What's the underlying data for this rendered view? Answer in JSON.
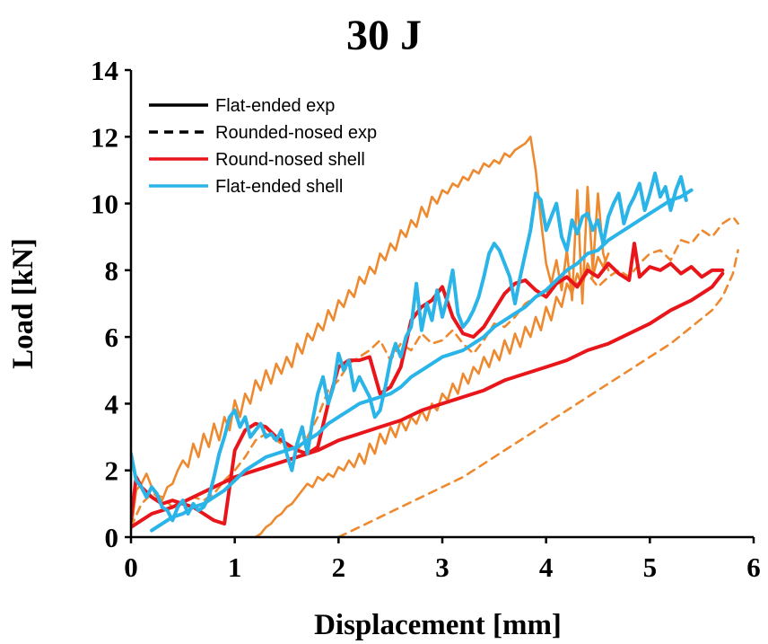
{
  "chart_data": {
    "type": "line",
    "title": "30 J",
    "xlabel": "Displacement [mm]",
    "ylabel": "Load [kN]",
    "xlim": [
      0,
      6
    ],
    "ylim": [
      0,
      14
    ],
    "x_ticks": [
      "0",
      "1",
      "2",
      "3",
      "4",
      "5",
      "6"
    ],
    "y_ticks": [
      "0",
      "2",
      "4",
      "6",
      "8",
      "10",
      "12",
      "14"
    ],
    "grid": false,
    "legend_position": "top-left",
    "legend": [
      {
        "label": "Flat-ended exp",
        "color": "#000000",
        "dash": "solid"
      },
      {
        "label": "Rounded-nosed exp",
        "color": "#000000",
        "dash": "dashed"
      },
      {
        "label": "Round-nosed shell",
        "color": "#e8161b",
        "dash": "solid"
      },
      {
        "label": "Flat-ended shell",
        "color": "#2bb4e8",
        "dash": "solid"
      }
    ],
    "series": [
      {
        "color": "#ed8a30",
        "width": 2.6,
        "dash": "solid",
        "x": [
          0.0,
          0.05,
          0.1,
          0.15,
          0.2,
          0.25,
          0.3,
          0.35,
          0.4,
          0.45,
          0.5,
          0.55,
          0.6,
          0.65,
          0.7,
          0.75,
          0.8,
          0.85,
          0.9,
          0.95,
          1.0,
          1.05,
          1.1,
          1.15,
          1.2,
          1.25,
          1.3,
          1.35,
          1.4,
          1.45,
          1.5,
          1.55,
          1.6,
          1.65,
          1.7,
          1.75,
          1.8,
          1.85,
          1.9,
          1.95,
          2.0,
          2.05,
          2.1,
          2.15,
          2.2,
          2.25,
          2.3,
          2.35,
          2.4,
          2.45,
          2.5,
          2.55,
          2.6,
          2.65,
          2.7,
          2.75,
          2.8,
          2.85,
          2.9,
          2.95,
          3.0,
          3.05,
          3.1,
          3.15,
          3.2,
          3.25,
          3.3,
          3.35,
          3.4,
          3.45,
          3.5,
          3.55,
          3.6,
          3.65,
          3.7,
          3.75,
          3.8,
          3.85,
          3.9,
          3.95,
          4.0,
          4.05,
          4.1,
          4.15,
          4.2,
          4.25,
          4.3,
          4.35,
          4.4,
          4.45,
          4.5,
          4.55,
          4.6
        ],
        "y": [
          0.2,
          1.4,
          1.6,
          1.9,
          1.5,
          1.2,
          1.1,
          1.5,
          1.6,
          2.0,
          2.3,
          2.1,
          2.8,
          2.4,
          3.1,
          2.7,
          3.4,
          2.9,
          3.6,
          3.2,
          4.1,
          3.6,
          4.3,
          4.0,
          4.7,
          4.4,
          5.0,
          4.6,
          5.2,
          4.9,
          5.4,
          5.1,
          5.8,
          5.5,
          6.1,
          5.9,
          6.4,
          6.2,
          6.8,
          6.5,
          7.1,
          6.9,
          7.4,
          7.2,
          7.8,
          7.6,
          8.1,
          7.9,
          8.5,
          8.3,
          8.8,
          8.6,
          9.2,
          9.0,
          9.5,
          9.3,
          9.9,
          9.6,
          10.2,
          10.0,
          10.4,
          10.3,
          10.6,
          10.5,
          10.8,
          10.7,
          11.0,
          10.9,
          11.2,
          11.1,
          11.3,
          11.2,
          11.5,
          11.4,
          11.6,
          11.7,
          11.8,
          12.0,
          11.0,
          9.5,
          8.2,
          7.6,
          8.3,
          7.4,
          8.6,
          7.1,
          10.4,
          7.0,
          10.5,
          8.0,
          10.3,
          8.5,
          8.0
        ]
      },
      {
        "color": "#ed8a30",
        "width": 2.6,
        "dash": "solid",
        "x": [
          1.2,
          1.25,
          1.3,
          1.35,
          1.4,
          1.45,
          1.5,
          1.55,
          1.6,
          1.65,
          1.7,
          1.75,
          1.8,
          1.85,
          1.9,
          1.95,
          2.0,
          2.05,
          2.1,
          2.15,
          2.2,
          2.25,
          2.3,
          2.35,
          2.4,
          2.45,
          2.5,
          2.55,
          2.6,
          2.65,
          2.7,
          2.75,
          2.8,
          2.85,
          2.9,
          2.95,
          3.0,
          3.05,
          3.1,
          3.15,
          3.2,
          3.25,
          3.3,
          3.35,
          3.4,
          3.45,
          3.5,
          3.55,
          3.6,
          3.65,
          3.7,
          3.75,
          3.8,
          3.85,
          3.9,
          3.95,
          4.0,
          4.05,
          4.1,
          4.15,
          4.2,
          4.25,
          4.3,
          4.35,
          4.4,
          4.45,
          4.5,
          4.55,
          4.6
        ],
        "y": [
          0.0,
          0.1,
          0.3,
          0.4,
          0.6,
          0.7,
          0.9,
          1.0,
          1.2,
          1.4,
          1.6,
          1.5,
          1.8,
          1.7,
          1.9,
          1.8,
          2.1,
          2.0,
          2.3,
          2.1,
          2.5,
          2.2,
          2.8,
          2.5,
          3.1,
          2.8,
          3.3,
          3.0,
          3.5,
          3.2,
          3.6,
          3.4,
          3.8,
          3.5,
          4.0,
          3.8,
          4.3,
          4.1,
          4.6,
          4.3,
          4.9,
          4.6,
          5.1,
          4.9,
          5.4,
          5.1,
          5.6,
          5.3,
          5.9,
          5.5,
          6.1,
          5.7,
          6.3,
          6.0,
          6.6,
          6.2,
          6.9,
          6.5,
          7.2,
          6.9,
          7.6,
          7.3,
          7.9,
          7.5,
          8.2,
          7.8,
          8.4,
          8.1,
          8.5
        ]
      },
      {
        "color": "#ed8a30",
        "width": 2.6,
        "dash": "dashed",
        "x": [
          0.0,
          0.1,
          0.2,
          0.3,
          0.4,
          0.5,
          0.6,
          0.7,
          0.8,
          0.9,
          1.0,
          1.1,
          1.2,
          1.3,
          1.4,
          1.5,
          1.6,
          1.7,
          1.8,
          1.9,
          2.0,
          2.1,
          2.2,
          2.3,
          2.4,
          2.5,
          2.6,
          2.7,
          2.8,
          2.9,
          3.0,
          3.1,
          3.2,
          3.3,
          3.4,
          3.5,
          3.6,
          3.7,
          3.8,
          3.9,
          4.0,
          4.1,
          4.2,
          4.3,
          4.4,
          4.5,
          4.6,
          4.7,
          4.8,
          4.9,
          5.0,
          5.1,
          5.2,
          5.3,
          5.4,
          5.5,
          5.6,
          5.7,
          5.8,
          5.85
        ],
        "y": [
          0.3,
          1.0,
          1.3,
          1.2,
          0.9,
          1.0,
          1.2,
          1.1,
          1.3,
          1.7,
          2.0,
          2.4,
          2.9,
          3.1,
          2.9,
          2.7,
          2.6,
          3.0,
          3.6,
          4.4,
          4.7,
          5.2,
          5.4,
          5.6,
          5.9,
          5.3,
          5.8,
          5.6,
          6.1,
          5.8,
          5.9,
          6.2,
          5.8,
          5.5,
          5.9,
          6.4,
          6.3,
          6.6,
          7.0,
          7.2,
          7.3,
          7.6,
          7.8,
          7.6,
          7.9,
          7.5,
          7.8,
          8.0,
          7.8,
          8.2,
          8.5,
          8.6,
          8.3,
          8.9,
          8.8,
          9.2,
          9.0,
          9.4,
          9.6,
          9.4
        ]
      },
      {
        "color": "#ed8a30",
        "width": 2.6,
        "dash": "dashed",
        "x": [
          2.0,
          2.2,
          2.4,
          2.6,
          2.8,
          3.0,
          3.2,
          3.4,
          3.6,
          3.8,
          4.0,
          4.2,
          4.4,
          4.6,
          4.8,
          5.0,
          5.2,
          5.4,
          5.6,
          5.7,
          5.8,
          5.85
        ],
        "y": [
          0.0,
          0.3,
          0.6,
          0.9,
          1.2,
          1.5,
          1.8,
          2.2,
          2.6,
          3.0,
          3.4,
          3.8,
          4.2,
          4.6,
          5.0,
          5.4,
          5.8,
          6.3,
          6.8,
          7.2,
          7.9,
          8.6
        ]
      },
      {
        "color": "#e8161b",
        "width": 4,
        "dash": "solid",
        "x": [
          0.0,
          0.05,
          0.1,
          0.2,
          0.3,
          0.4,
          0.5,
          0.6,
          0.7,
          0.8,
          0.9,
          1.0,
          1.1,
          1.2,
          1.3,
          1.4,
          1.5,
          1.6,
          1.7,
          1.8,
          1.9,
          2.0,
          2.1,
          2.2,
          2.3,
          2.4,
          2.5,
          2.6,
          2.7,
          2.8,
          2.9,
          3.0,
          3.1,
          3.2,
          3.3,
          3.4,
          3.5,
          3.6,
          3.7,
          3.8,
          3.9,
          4.0,
          4.1,
          4.2,
          4.3,
          4.4,
          4.5,
          4.6,
          4.7,
          4.8,
          4.85,
          4.9,
          5.0,
          5.1,
          5.2,
          5.3,
          5.4,
          5.5,
          5.6,
          5.7
        ],
        "y": [
          0.5,
          1.8,
          1.5,
          1.2,
          1.0,
          1.1,
          1.0,
          0.9,
          0.7,
          0.5,
          0.4,
          2.6,
          3.2,
          3.4,
          3.3,
          3.0,
          2.8,
          2.6,
          2.5,
          2.7,
          4.0,
          5.1,
          5.3,
          5.3,
          5.4,
          4.3,
          4.5,
          5.1,
          6.5,
          6.9,
          7.1,
          7.5,
          6.6,
          6.1,
          6.0,
          6.3,
          6.8,
          7.3,
          7.6,
          7.7,
          7.4,
          7.2,
          7.6,
          7.8,
          7.5,
          8.0,
          7.8,
          8.2,
          7.9,
          7.7,
          8.8,
          7.8,
          8.1,
          8.0,
          8.2,
          7.9,
          8.1,
          7.8,
          8.0,
          8.0
        ]
      },
      {
        "color": "#e8161b",
        "width": 4,
        "dash": "solid",
        "x": [
          0.0,
          0.2,
          0.4,
          0.6,
          0.8,
          1.0,
          1.2,
          1.4,
          1.6,
          1.8,
          2.0,
          2.2,
          2.4,
          2.6,
          2.8,
          3.0,
          3.2,
          3.4,
          3.6,
          3.8,
          4.0,
          4.2,
          4.4,
          4.6,
          4.8,
          5.0,
          5.2,
          5.4,
          5.6,
          5.7
        ],
        "y": [
          0.3,
          0.7,
          0.9,
          1.2,
          1.5,
          1.8,
          2.0,
          2.2,
          2.4,
          2.6,
          2.9,
          3.1,
          3.3,
          3.5,
          3.8,
          4.0,
          4.2,
          4.4,
          4.7,
          4.9,
          5.1,
          5.3,
          5.6,
          5.8,
          6.1,
          6.4,
          6.8,
          7.1,
          7.5,
          7.9
        ]
      },
      {
        "color": "#2bb4e8",
        "width": 4,
        "dash": "solid",
        "x": [
          0.0,
          0.05,
          0.1,
          0.15,
          0.2,
          0.25,
          0.3,
          0.35,
          0.4,
          0.45,
          0.5,
          0.55,
          0.6,
          0.65,
          0.7,
          0.75,
          0.8,
          0.85,
          0.9,
          0.95,
          1.0,
          1.05,
          1.1,
          1.15,
          1.2,
          1.25,
          1.3,
          1.35,
          1.4,
          1.45,
          1.5,
          1.55,
          1.6,
          1.65,
          1.7,
          1.75,
          1.8,
          1.85,
          1.9,
          1.95,
          2.0,
          2.05,
          2.1,
          2.15,
          2.2,
          2.25,
          2.3,
          2.35,
          2.4,
          2.45,
          2.5,
          2.55,
          2.6,
          2.65,
          2.7,
          2.75,
          2.8,
          2.85,
          2.9,
          2.95,
          3.0,
          3.05,
          3.1,
          3.15,
          3.2,
          3.25,
          3.3,
          3.35,
          3.4,
          3.45,
          3.5,
          3.55,
          3.6,
          3.65,
          3.7,
          3.75,
          3.8,
          3.85,
          3.9,
          3.95,
          4.0,
          4.05,
          4.1,
          4.15,
          4.2,
          4.25,
          4.3,
          4.35,
          4.4,
          4.45,
          4.5,
          4.55,
          4.6,
          4.65,
          4.7,
          4.75,
          4.8,
          4.85,
          4.9,
          4.95,
          5.0,
          5.05,
          5.1,
          5.15,
          5.2,
          5.25,
          5.3,
          5.35
        ],
        "y": [
          2.5,
          1.7,
          1.5,
          1.2,
          1.5,
          1.3,
          0.9,
          0.8,
          0.5,
          0.9,
          1.1,
          0.7,
          1.0,
          0.8,
          0.9,
          1.2,
          1.8,
          2.5,
          3.0,
          3.6,
          3.8,
          3.3,
          3.6,
          3.0,
          3.2,
          3.4,
          3.0,
          3.1,
          2.9,
          3.2,
          2.5,
          2.0,
          2.8,
          3.3,
          2.5,
          3.5,
          4.3,
          4.8,
          4.0,
          4.5,
          5.5,
          5.0,
          5.3,
          4.4,
          4.8,
          4.5,
          4.2,
          3.6,
          3.8,
          4.5,
          5.3,
          5.8,
          5.4,
          6.0,
          6.3,
          7.6,
          6.2,
          7.0,
          6.5,
          7.4,
          6.6,
          7.2,
          8.0,
          6.7,
          6.3,
          6.5,
          6.8,
          7.2,
          7.8,
          8.5,
          8.8,
          8.6,
          8.2,
          7.8,
          7.0,
          7.8,
          8.5,
          9.2,
          10.3,
          10.1,
          9.2,
          9.6,
          10.0,
          9.0,
          8.6,
          9.5,
          9.1,
          9.6,
          9.7,
          9.2,
          9.5,
          8.8,
          9.6,
          10.0,
          10.3,
          9.4,
          9.9,
          10.2,
          10.6,
          9.8,
          10.3,
          10.9,
          10.2,
          10.5,
          9.8,
          10.4,
          10.8,
          10.1
        ]
      },
      {
        "color": "#2bb4e8",
        "width": 4,
        "dash": "solid",
        "x": [
          0.2,
          0.3,
          0.4,
          0.5,
          0.6,
          0.7,
          0.8,
          0.9,
          1.0,
          1.1,
          1.2,
          1.3,
          1.4,
          1.5,
          1.6,
          1.7,
          1.8,
          1.9,
          2.0,
          2.1,
          2.2,
          2.3,
          2.4,
          2.5,
          2.6,
          2.7,
          2.8,
          2.9,
          3.0,
          3.1,
          3.2,
          3.3,
          3.4,
          3.5,
          3.6,
          3.7,
          3.8,
          3.9,
          4.0,
          4.1,
          4.2,
          4.3,
          4.4,
          4.5,
          4.6,
          4.7,
          4.8,
          4.9,
          5.0,
          5.1,
          5.2,
          5.3,
          5.4
        ],
        "y": [
          0.2,
          0.4,
          0.6,
          0.7,
          0.9,
          1.0,
          1.2,
          1.4,
          1.7,
          2.0,
          2.2,
          2.4,
          2.5,
          2.6,
          2.7,
          2.9,
          3.1,
          3.4,
          3.6,
          3.8,
          4.0,
          4.1,
          4.2,
          4.3,
          4.5,
          4.8,
          5.0,
          5.2,
          5.4,
          5.5,
          5.6,
          5.8,
          6.0,
          6.3,
          6.5,
          6.7,
          6.9,
          7.2,
          7.4,
          7.7,
          8.0,
          8.2,
          8.5,
          8.6,
          8.9,
          9.1,
          9.3,
          9.5,
          9.7,
          9.9,
          10.1,
          10.2,
          10.4
        ]
      }
    ]
  }
}
